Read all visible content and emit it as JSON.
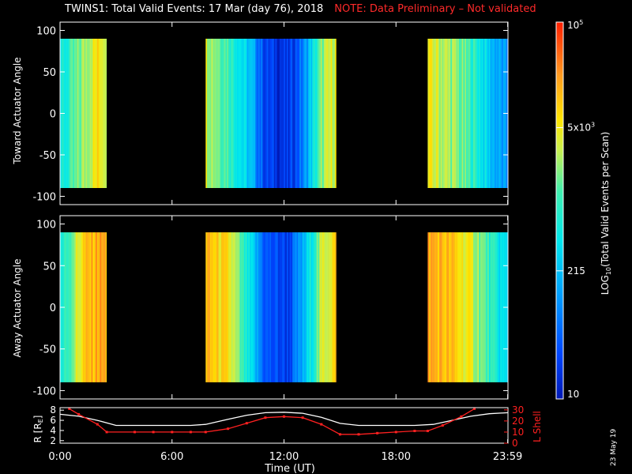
{
  "header": {
    "title": "TWINS1: Total Valid Events: 17 Mar (day  76), 2018",
    "note": "NOTE: Data Preliminary – Not validated"
  },
  "chart_data": [
    {
      "type": "heatmap",
      "panel": "toward",
      "ylabel": "Toward Actuator Angle",
      "ylim": [
        -110,
        110
      ],
      "yticks": [
        100,
        50,
        0,
        -50,
        -100
      ],
      "angle_range": [
        -90,
        90
      ],
      "xlim_hours": [
        0,
        24
      ],
      "data_blocks_hours": [
        [
          0,
          2.5
        ],
        [
          7.8,
          14.8
        ],
        [
          19.7,
          24
        ]
      ],
      "color_profile": [
        {
          "t": 0.0,
          "level": 0.42
        },
        {
          "t": 0.6,
          "level": 0.52
        },
        {
          "t": 1.2,
          "level": 0.62
        },
        {
          "t": 2.0,
          "level": 0.74
        },
        {
          "t": 2.5,
          "level": 0.7
        },
        {
          "t": 7.8,
          "level": 0.68
        },
        {
          "t": 9.0,
          "level": 0.55
        },
        {
          "t": 10.3,
          "level": 0.3
        },
        {
          "t": 11.0,
          "level": 0.1
        },
        {
          "t": 12.2,
          "level": 0.06
        },
        {
          "t": 13.0,
          "level": 0.22
        },
        {
          "t": 14.0,
          "level": 0.6
        },
        {
          "t": 14.8,
          "level": 0.72
        },
        {
          "t": 19.7,
          "level": 0.7
        },
        {
          "t": 21.0,
          "level": 0.62
        },
        {
          "t": 22.2,
          "level": 0.5
        },
        {
          "t": 23.0,
          "level": 0.35
        },
        {
          "t": 24.0,
          "level": 0.22
        }
      ]
    },
    {
      "type": "heatmap",
      "panel": "away",
      "ylabel": "Away Actuator Angle",
      "ylim": [
        -110,
        110
      ],
      "yticks": [
        100,
        50,
        0,
        -50,
        -100
      ],
      "angle_range": [
        -90,
        90
      ],
      "xlim_hours": [
        0,
        24
      ],
      "data_blocks_hours": [
        [
          0,
          2.5
        ],
        [
          7.8,
          14.8
        ],
        [
          19.7,
          24
        ]
      ],
      "color_profile": [
        {
          "t": 0.0,
          "level": 0.45
        },
        {
          "t": 0.6,
          "level": 0.6
        },
        {
          "t": 1.2,
          "level": 0.76
        },
        {
          "t": 2.0,
          "level": 0.84
        },
        {
          "t": 2.5,
          "level": 0.82
        },
        {
          "t": 7.8,
          "level": 0.8
        },
        {
          "t": 9.0,
          "level": 0.72
        },
        {
          "t": 10.3,
          "level": 0.35
        },
        {
          "t": 11.0,
          "level": 0.14
        },
        {
          "t": 12.2,
          "level": 0.1
        },
        {
          "t": 13.0,
          "level": 0.3
        },
        {
          "t": 14.0,
          "level": 0.66
        },
        {
          "t": 14.8,
          "level": 0.78
        },
        {
          "t": 19.7,
          "level": 0.84
        },
        {
          "t": 21.0,
          "level": 0.78
        },
        {
          "t": 22.2,
          "level": 0.66
        },
        {
          "t": 23.0,
          "level": 0.5
        },
        {
          "t": 24.0,
          "level": 0.35
        }
      ]
    },
    {
      "type": "line",
      "panel": "orbit",
      "ylabel_left": "R [R",
      "ylabel_left_sub": "E",
      "ylabel_left_end": "]",
      "ylabel_right": "L Shell",
      "ylim_left": [
        1.5,
        8.5
      ],
      "yticks_left": [
        8,
        6,
        4,
        2
      ],
      "ylim_right": [
        0,
        32
      ],
      "yticks_right": [
        30,
        20,
        10,
        0
      ],
      "xticks_hours": [
        0,
        6,
        12,
        18,
        23.983
      ],
      "xtick_labels": [
        "0:00",
        "6:00",
        "12:00",
        "18:00",
        "23:59"
      ],
      "xlabel": "Time (UT)",
      "series": [
        {
          "name": "R",
          "axis": "left",
          "color": "#ffffff",
          "x": [
            0,
            1.0,
            2.0,
            3.0,
            4.0,
            5.0,
            6.0,
            7.0,
            7.8,
            9.0,
            10.0,
            11.0,
            12.0,
            13.0,
            14.0,
            15.0,
            16.0,
            17.0,
            18.0,
            19.0,
            20.0,
            21.0,
            22.0,
            23.0,
            24.0
          ],
          "values": [
            7.2,
            6.8,
            6.0,
            5.0,
            5.0,
            5.0,
            5.0,
            5.0,
            5.2,
            6.2,
            7.0,
            7.5,
            7.6,
            7.4,
            6.6,
            5.4,
            5.0,
            5.0,
            5.0,
            5.0,
            5.2,
            6.0,
            6.8,
            7.3,
            7.5
          ]
        },
        {
          "name": "L Shell",
          "axis": "right",
          "color": "#ff2020",
          "x": [
            0.5,
            1.0,
            2.0,
            2.5,
            4.0,
            5.0,
            6.0,
            7.0,
            7.8,
            9.0,
            10.0,
            11.0,
            12.0,
            13.0,
            14.0,
            15.0,
            16.0,
            17.0,
            18.0,
            19.0,
            19.7,
            20.5,
            21.5,
            22.2
          ],
          "values": [
            31,
            26,
            17,
            10,
            10,
            10,
            10,
            10,
            10,
            13,
            18,
            23,
            24,
            23,
            17,
            8,
            8,
            9,
            10,
            11,
            11,
            16,
            24,
            31
          ]
        }
      ]
    }
  ],
  "colorbar": {
    "label_main": "LOG",
    "label_sub": "10",
    "label_rest": "(Total Valid Events per Scan)",
    "ticks": [
      {
        "text": "10",
        "sup": "5",
        "level": 1.0
      },
      {
        "text": "5x10",
        "sup": "3",
        "level": 0.72
      },
      {
        "text": "215",
        "sup": "",
        "level": 0.34
      },
      {
        "text": "10",
        "sup": "",
        "level": 0.0
      }
    ]
  },
  "footer": {
    "date": "23 May 19"
  }
}
